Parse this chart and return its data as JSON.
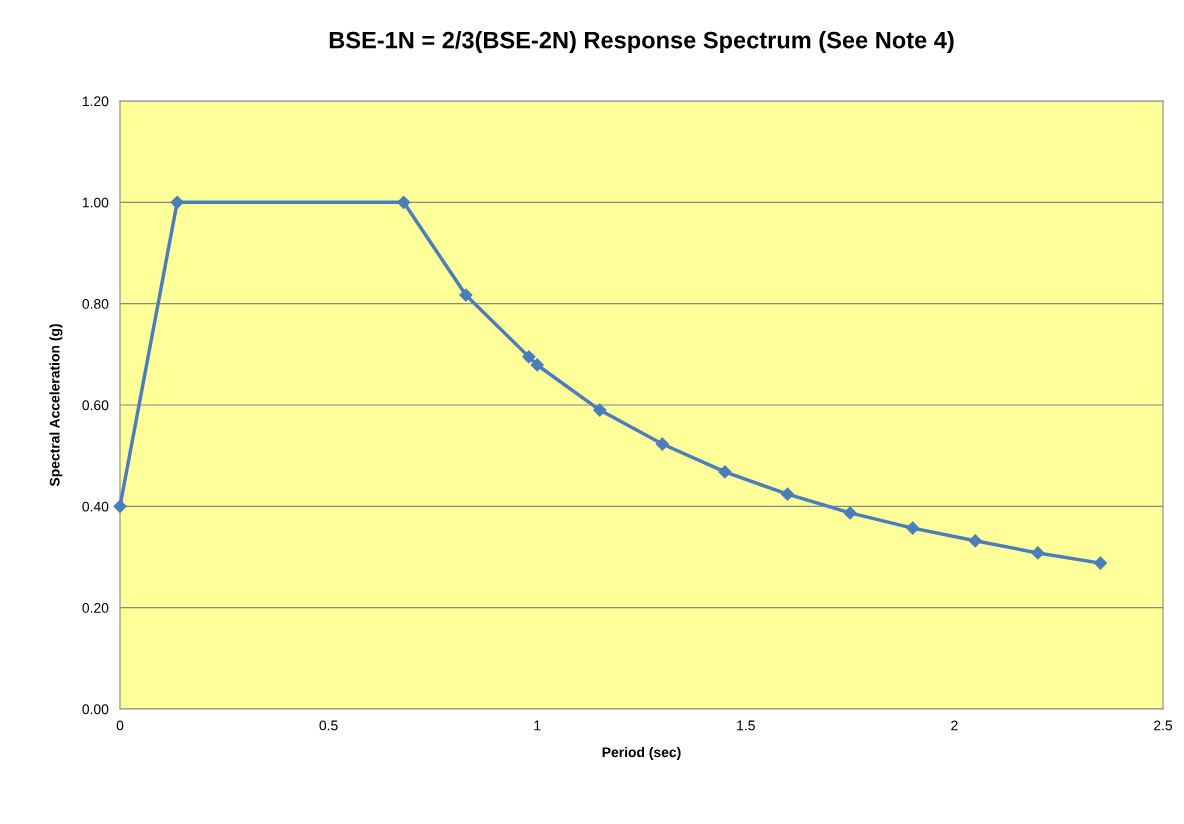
{
  "chart_data": {
    "type": "line",
    "title": "BSE-1N = 2/3(BSE-2N) Response Spectrum (See Note 4)",
    "xlabel": "Period (sec)",
    "ylabel": "Spectral Acceleration (g)",
    "x": [
      0,
      0.137,
      0.68,
      0.829,
      0.98,
      1.0,
      1.15,
      1.3,
      1.45,
      1.6,
      1.75,
      1.9,
      2.05,
      2.2,
      2.35
    ],
    "series": [
      {
        "color": "#4a7ebb",
        "values": [
          0.4,
          1.0,
          1.0,
          0.817,
          0.695,
          0.679,
          0.59,
          0.523,
          0.468,
          0.424,
          0.387,
          0.357,
          0.332,
          0.308,
          0.288
        ]
      }
    ],
    "xlim": [
      0,
      2.5
    ],
    "xticks": [
      0,
      {
        "value": 0.5,
        "label": "0.5"
      },
      1,
      {
        "value": 1.5,
        "label": "1.5"
      },
      2,
      {
        "value": 2.5,
        "label": "2.5"
      }
    ],
    "ylim": [
      0,
      1.2
    ],
    "yticks": [
      {
        "value": 0,
        "label": "0.00"
      },
      {
        "value": 0.2,
        "label": "0.20"
      },
      {
        "value": 0.4,
        "label": "0.40"
      },
      {
        "value": 0.6,
        "label": "0.60"
      },
      {
        "value": 0.8,
        "label": "0.80"
      },
      {
        "value": 1.0,
        "label": "1.00"
      },
      {
        "value": 1.2,
        "label": "1.20"
      }
    ],
    "grid": "y",
    "marker": "diamond",
    "line_style": "solid",
    "legend": false
  }
}
